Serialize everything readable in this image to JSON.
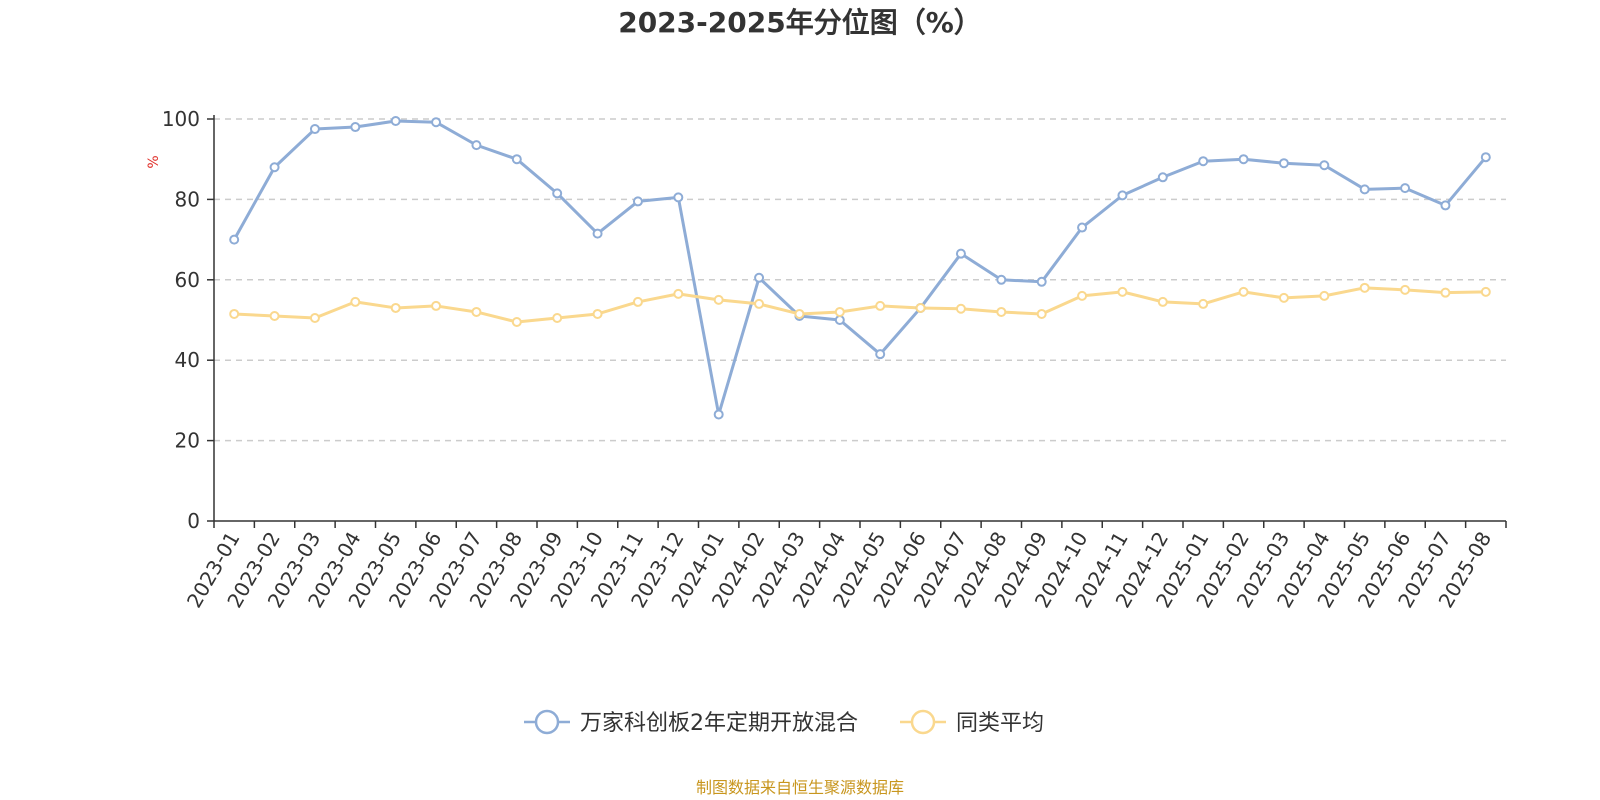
{
  "chart_data": {
    "type": "line",
    "title": "2023-2025年分位图（%）",
    "ylabel": "%",
    "xlabel": "",
    "ylim": [
      0,
      100
    ],
    "yticks": [
      0,
      20,
      40,
      60,
      80,
      100
    ],
    "grid": true,
    "legend_position": "bottom",
    "categories": [
      "2023-01",
      "2023-02",
      "2023-03",
      "2023-04",
      "2023-05",
      "2023-06",
      "2023-07",
      "2023-08",
      "2023-09",
      "2023-10",
      "2023-11",
      "2023-12",
      "2024-01",
      "2024-02",
      "2024-03",
      "2024-04",
      "2024-05",
      "2024-06",
      "2024-07",
      "2024-08",
      "2024-09",
      "2024-10",
      "2024-11",
      "2024-12",
      "2025-01",
      "2025-02",
      "2025-03",
      "2025-04",
      "2025-05",
      "2025-06",
      "2025-07",
      "2025-08"
    ],
    "series": [
      {
        "name": "万家科创板2年定期开放混合",
        "color": "#8eacd6",
        "values": [
          70,
          88,
          97.5,
          98,
          99.5,
          99.2,
          93.5,
          90,
          81.5,
          71.5,
          79.5,
          80.5,
          26.5,
          60.5,
          51,
          50,
          41.5,
          53,
          66.5,
          60,
          59.5,
          73,
          81,
          85.5,
          89.5,
          90,
          89,
          88.5,
          82.5,
          82.8,
          78.5,
          90.5
        ]
      },
      {
        "name": "同类平均",
        "color": "#fad88e",
        "values": [
          51.5,
          51,
          50.5,
          54.5,
          53,
          53.5,
          52,
          49.5,
          50.5,
          51.5,
          54.5,
          56.5,
          55,
          54,
          51.5,
          52,
          53.5,
          53,
          52.8,
          52,
          51.5,
          56,
          57,
          54.5,
          54,
          57,
          55.5,
          56,
          58,
          57.5,
          56.8,
          57
        ]
      }
    ]
  },
  "footer": {
    "source": "制图数据来自恒生聚源数据库"
  }
}
